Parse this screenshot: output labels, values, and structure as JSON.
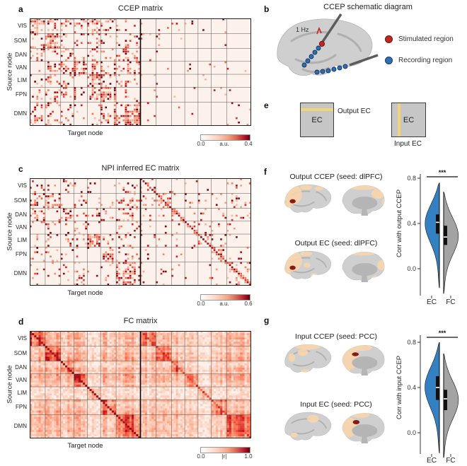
{
  "colors": {
    "ec_blue": "#3380c2",
    "fc_gray": "#a3a3a3",
    "stim_red": "#c0281f",
    "rec_blue": "#2f6fb5",
    "seed_red": "#8c1a11",
    "peach": "#f8d5ab",
    "matrix_bg": "#fdf1ec",
    "stripe_yellow": "#f2d478"
  },
  "axes": {
    "source": "Source node",
    "target": "Target node"
  },
  "networks": [
    "VIS",
    "SOM",
    "DAN",
    "VAN",
    "LIM",
    "FPN",
    "DMN"
  ],
  "network_sizes": [
    7,
    7,
    6,
    6,
    6,
    7,
    11
  ],
  "matrices": [
    {
      "letter": "a",
      "title": "CCEP matrix",
      "kind": "ccep",
      "seed": 11,
      "cbar_min": "0.0",
      "cbar_unit": "a.u.",
      "cbar_max": "0.4"
    },
    {
      "letter": "c",
      "title": "NPI inferred EC matrix",
      "kind": "ec",
      "seed": 23,
      "cbar_min": "0.0",
      "cbar_unit": "a.u.",
      "cbar_max": "0.6"
    },
    {
      "letter": "d",
      "title": "FC matrix",
      "kind": "fc",
      "seed": 37,
      "cbar_min": "0.0",
      "cbar_unit": "|r|",
      "cbar_max": "1.0"
    }
  ],
  "schematic": {
    "letter": "b",
    "title": "CCEP schematic diagram",
    "stim_freq": "1 Hz",
    "legend": [
      {
        "label": "Stimulated region"
      },
      {
        "label": "Recording region"
      }
    ]
  },
  "ec_diagram": {
    "letter": "e",
    "box_label": "EC",
    "output_label": "Output EC",
    "input_label": "Input EC"
  },
  "violin_panels": [
    {
      "letter": "f",
      "map_titles": [
        "Output CCEP (seed: dlPFC)",
        "Output EC (seed: dlPFC)"
      ],
      "ylabel": "Corr with output CCEP",
      "significance": "***",
      "ticks": [
        "0.0",
        "0.4",
        "0.8"
      ],
      "groups": [
        {
          "label": "EC",
          "median": 0.41,
          "q1": 0.31,
          "q3": 0.48,
          "min": -0.17,
          "max": 0.76,
          "peak": 0.42
        },
        {
          "label": "FC",
          "median": 0.28,
          "q1": 0.21,
          "q3": 0.38,
          "min": -0.22,
          "max": 0.68,
          "peak": 0.3
        }
      ]
    },
    {
      "letter": "g",
      "map_titles": [
        "Input CCEP (seed: PCC)",
        "Input EC (seed: PCC)"
      ],
      "ylabel": "Corr with input CCEP",
      "significance": "***",
      "ticks": [
        "0.0",
        "0.4",
        "0.8"
      ],
      "groups": [
        {
          "label": "EC",
          "median": 0.4,
          "q1": 0.29,
          "q3": 0.5,
          "min": -0.18,
          "max": 0.8,
          "peak": 0.42
        },
        {
          "label": "FC",
          "median": 0.3,
          "q1": 0.2,
          "q3": 0.38,
          "min": -0.22,
          "max": 0.7,
          "peak": 0.3
        }
      ]
    }
  ]
}
